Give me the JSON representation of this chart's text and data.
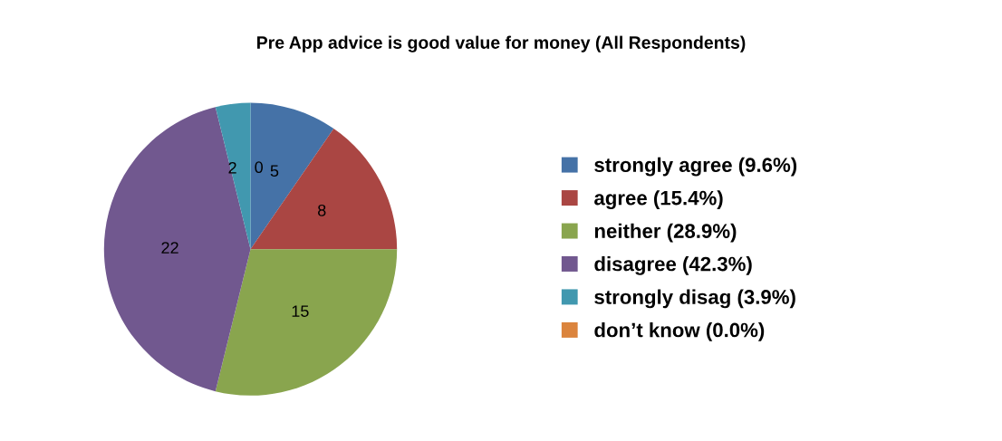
{
  "chart_data": {
    "type": "pie",
    "title": "Pre App advice is good value for money (All Respondents)",
    "categories": [
      "strongly agree (9.6%)",
      "agree (15.4%)",
      "neither (28.9%)",
      "disagree (42.3%)",
      "strongly disag (3.9%)",
      "don’t know (0.0%)"
    ],
    "values": [
      5,
      8,
      15,
      22,
      2,
      0
    ],
    "colors": [
      "#4572a7",
      "#aa4643",
      "#89a54e",
      "#71588f",
      "#4198af",
      "#db843d"
    ],
    "value_labels": [
      "5",
      "8",
      "15",
      "22",
      "2",
      "0"
    ],
    "legend": "right"
  }
}
